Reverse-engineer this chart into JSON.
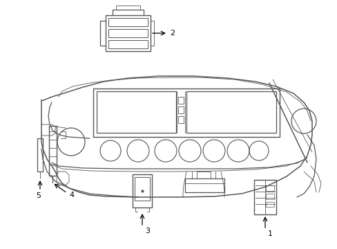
{
  "background_color": "#ffffff",
  "line_color": "#555555",
  "label_color": "#000000",
  "figsize": [
    4.89,
    3.6
  ],
  "dpi": 100,
  "arrow_color": "#000000",
  "component_lw": 1.0,
  "dash_lw": 1.0
}
